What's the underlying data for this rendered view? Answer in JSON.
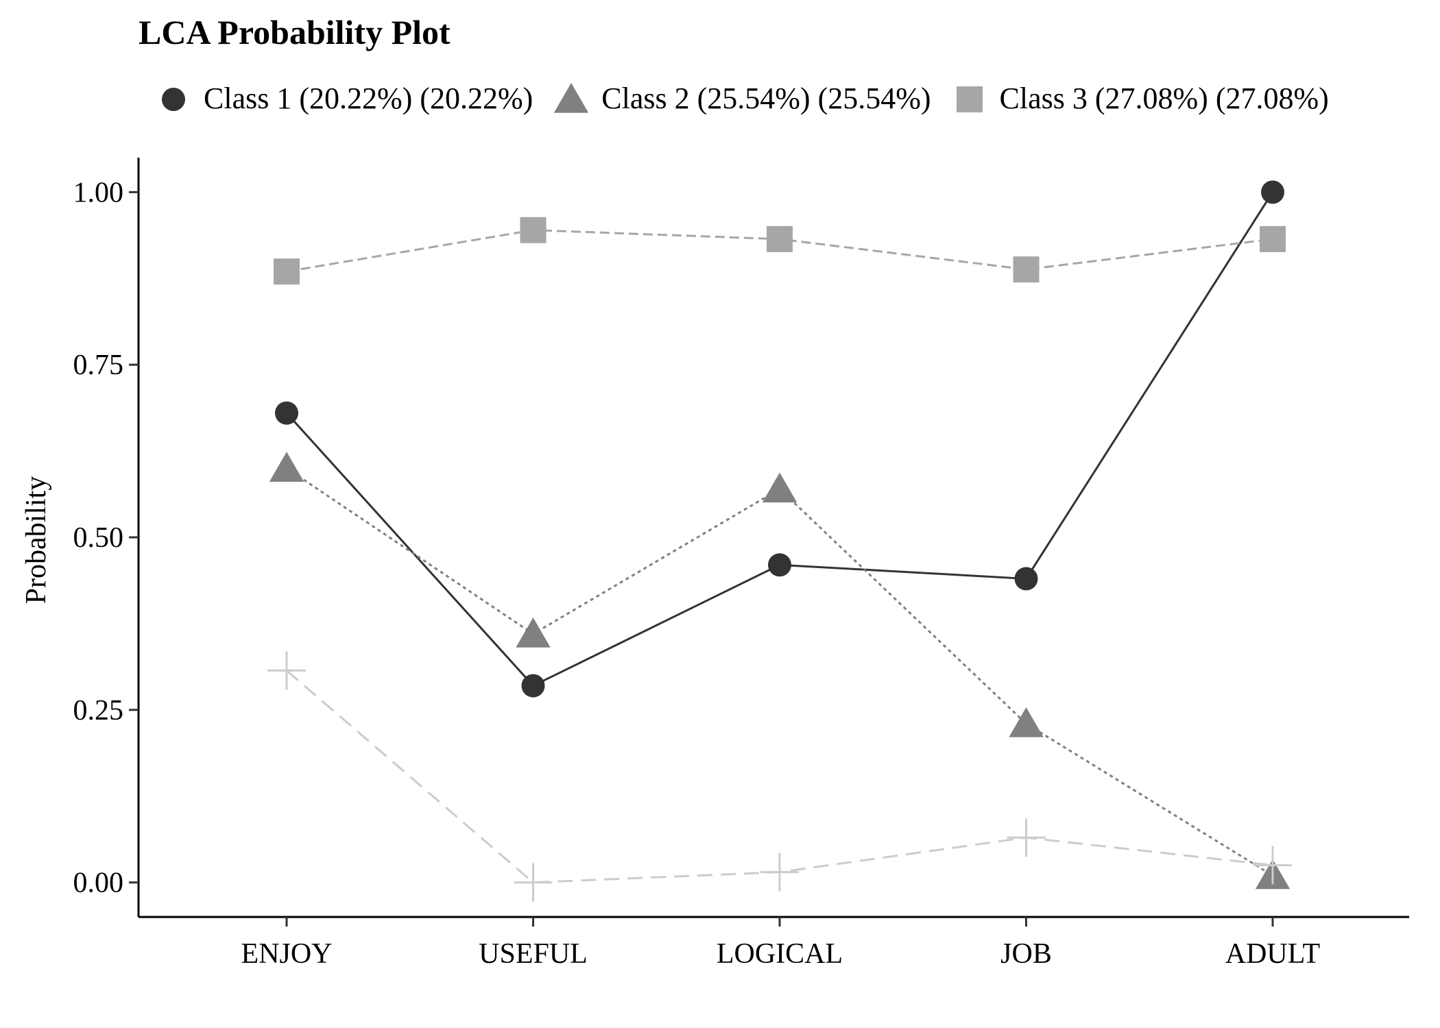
{
  "chart_data": {
    "type": "line",
    "title": "LCA Probability Plot",
    "xlabel": "",
    "ylabel": "Probability",
    "categories": [
      "ENJOY",
      "USEFUL",
      "LOGICAL",
      "JOB",
      "ADULT"
    ],
    "ylim": [
      -0.05,
      1.05
    ],
    "yticks": [
      0,
      0.25,
      0.5,
      0.75,
      1
    ],
    "ytick_labels": [
      "0.00",
      "0.25",
      "0.50",
      "0.75",
      "1.00"
    ],
    "grid": false,
    "legend_position": "top",
    "series": [
      {
        "name": "Class 1 (20.22%) (20.22%)",
        "values": [
          0.68,
          0.285,
          0.46,
          0.44,
          1.0
        ],
        "color": "#333333",
        "marker": "circle",
        "line": "solid",
        "in_legend": true
      },
      {
        "name": "Class 2 (25.54%) (25.54%)",
        "values": [
          0.6,
          0.36,
          0.57,
          0.23,
          0.01
        ],
        "color": "#808080",
        "marker": "triangle",
        "line": "dotted",
        "in_legend": true
      },
      {
        "name": "Class 3 (27.08%) (27.08%)",
        "values": [
          0.885,
          0.945,
          0.932,
          0.888,
          0.932
        ],
        "color": "#a6a6a6",
        "marker": "square",
        "line": "dashed",
        "in_legend": true
      },
      {
        "name": "",
        "values": [
          0.307,
          0.0,
          0.015,
          0.065,
          0.025
        ],
        "color": "#cccccc",
        "marker": "plus",
        "line": "longdash",
        "in_legend": false
      }
    ]
  }
}
